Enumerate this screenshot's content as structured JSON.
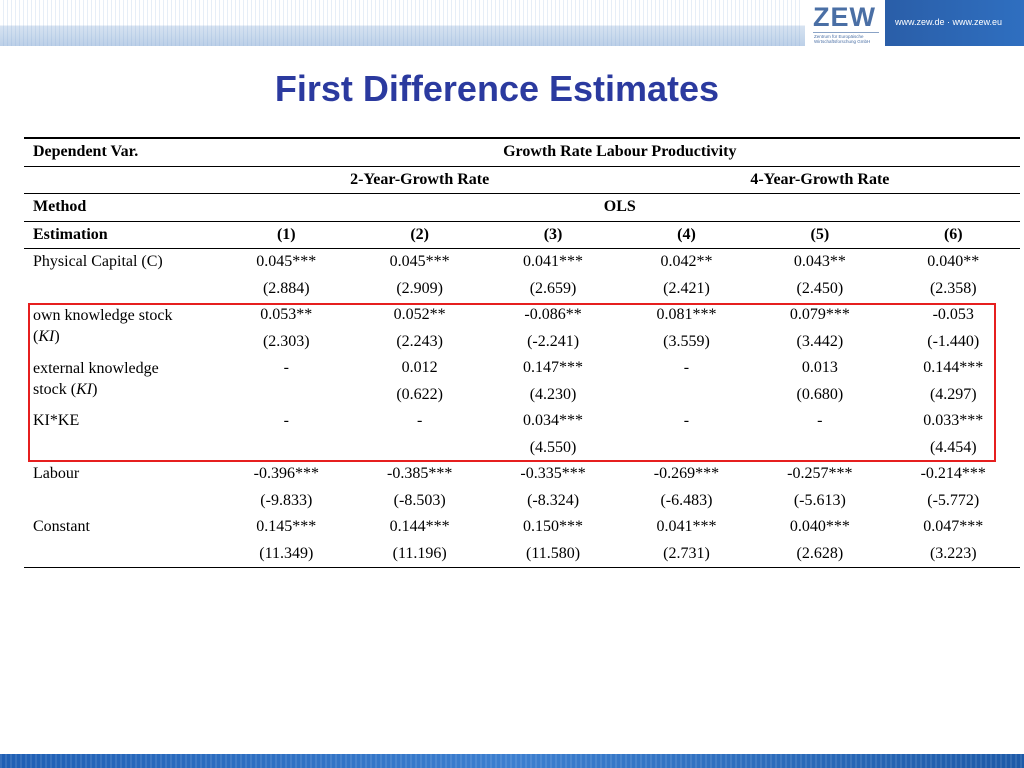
{
  "header": {
    "logo_text": "ZEW",
    "logo_subtext": "Zentrum für Europäische Wirtschaftsforschung GmbH",
    "url": "www.zew.de · www.zew.eu"
  },
  "title": "First Difference Estimates",
  "table": {
    "dependent_label": "Dependent Var.",
    "dependent_value": "Growth Rate Labour Productivity",
    "group_2yr": "2-Year-Growth Rate",
    "group_4yr": "4-Year-Growth Rate",
    "method_label": "Method",
    "method_value": "OLS",
    "estimation_label": "Estimation",
    "columns": [
      "(1)",
      "(2)",
      "(3)",
      "(4)",
      "(5)",
      "(6)"
    ],
    "rows": [
      {
        "label": "Physical Capital (C)",
        "coef": [
          "0.045***",
          "0.045***",
          "0.041***",
          "0.042**",
          "0.043**",
          "0.040**"
        ],
        "t": [
          "(2.884)",
          "(2.909)",
          "(2.659)",
          "(2.421)",
          "(2.450)",
          "(2.358)"
        ]
      },
      {
        "label_1": "own knowledge stock",
        "label_2": "(KI)",
        "coef": [
          "0.053**",
          "0.052**",
          "-0.086**",
          "0.081***",
          "0.079***",
          "-0.053"
        ],
        "t": [
          "(2.303)",
          "(2.243)",
          "(-2.241)",
          "(3.559)",
          "(3.442)",
          "(-1.440)"
        ]
      },
      {
        "label_1": "external knowledge",
        "label_2": "stock (KI)",
        "coef": [
          "-",
          "0.012",
          "0.147***",
          "-",
          "0.013",
          "0.144***"
        ],
        "t": [
          "",
          "(0.622)",
          "(4.230)",
          "",
          "(0.680)",
          "(4.297)"
        ]
      },
      {
        "label": "KI*KE",
        "coef": [
          "-",
          "-",
          "0.034***",
          "-",
          "-",
          "0.033***"
        ],
        "t": [
          "",
          "",
          "(4.550)",
          "",
          "",
          "(4.454)"
        ]
      },
      {
        "label": "Labour",
        "coef": [
          "-0.396***",
          "-0.385***",
          "-0.335***",
          "-0.269***",
          "-0.257***",
          "-0.214***"
        ],
        "t": [
          "(-9.833)",
          "(-8.503)",
          "(-8.324)",
          "(-6.483)",
          "(-5.613)",
          "(-5.772)"
        ]
      },
      {
        "label": "Constant",
        "coef": [
          "0.145***",
          "0.144***",
          "0.150***",
          "0.041***",
          "0.040***",
          "0.047***"
        ],
        "t": [
          "(11.349)",
          "(11.196)",
          "(11.580)",
          "(2.731)",
          "(2.628)",
          "(3.223)"
        ]
      }
    ]
  },
  "highlight_color": "#e61f1f",
  "title_color": "#2b3a9f"
}
